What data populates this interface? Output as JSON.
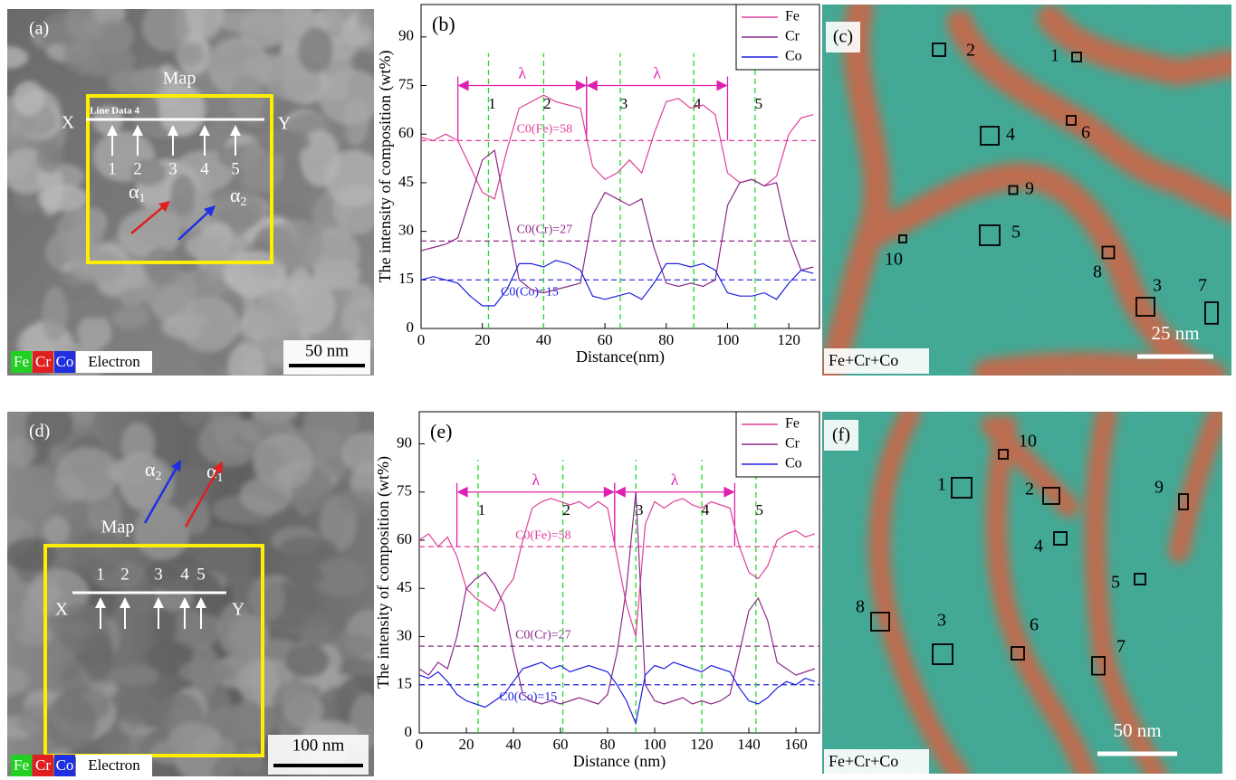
{
  "panels": {
    "a": {
      "label": "(a)",
      "map": "Map",
      "line": "Line Data 4",
      "x_end": "X",
      "y_end": "Y",
      "points": [
        "1",
        "2",
        "3",
        "4",
        "5"
      ],
      "alphas": [
        {
          "symbol": "α",
          "subscript": "1"
        },
        {
          "symbol": "α",
          "subscript": "2"
        }
      ],
      "legend": [
        {
          "label": "Fe",
          "color": "#22d022"
        },
        {
          "label": "Cr",
          "color": "#e02020"
        },
        {
          "label": "Co",
          "color": "#2030e0"
        },
        {
          "label": "Electron",
          "color": "#ffffff"
        }
      ],
      "scale": "50 nm"
    },
    "c": {
      "label": "(c)",
      "regions": [
        "1",
        "2",
        "4",
        "6",
        "9",
        "10",
        "5",
        "8",
        "3",
        "7"
      ],
      "scale": "25 nm",
      "caption": "Fe+Cr+Co"
    },
    "d": {
      "label": "(d)",
      "map": "Map",
      "x_end": "X",
      "y_end": "Y",
      "points": [
        "1",
        "2",
        "3",
        "4",
        "5"
      ],
      "alphas": [
        {
          "symbol": "α",
          "subscript": "2"
        },
        {
          "symbol": "α",
          "subscript": "1"
        }
      ],
      "legend": [
        {
          "label": "Fe",
          "color": "#22d022"
        },
        {
          "label": "Cr",
          "color": "#e02020"
        },
        {
          "label": "Co",
          "color": "#2030e0"
        },
        {
          "label": "Electron",
          "color": "#ffffff"
        }
      ],
      "scale": "100 nm"
    },
    "f": {
      "label": "(f)",
      "regions": [
        "1",
        "2",
        "10",
        "9",
        "4",
        "5",
        "8",
        "3",
        "6",
        "7"
      ],
      "scale": "50 nm",
      "caption": "Fe+Cr+Co"
    }
  },
  "chart_data": [
    {
      "type": "line",
      "panel_label": "(b)",
      "ylabel": "The intensity of composition (wt%)",
      "xlabel": "Distance(nm)",
      "xlim": [
        0,
        130
      ],
      "xticks": [
        0,
        20,
        40,
        60,
        80,
        100,
        120
      ],
      "ylim": [
        0,
        100
      ],
      "yticks": [
        0,
        15,
        30,
        45,
        60,
        75,
        90
      ],
      "legend": "upper right",
      "x": [
        0,
        4,
        8,
        12,
        16,
        20,
        24,
        28,
        32,
        36,
        40,
        44,
        48,
        52,
        56,
        60,
        64,
        68,
        72,
        76,
        80,
        84,
        88,
        92,
        96,
        100,
        104,
        108,
        112,
        116,
        120,
        124,
        128
      ],
      "series": [
        {
          "name": "Fe",
          "color": "#e0409a",
          "values": [
            59,
            58,
            60,
            58,
            50,
            42,
            40,
            55,
            68,
            70,
            72,
            70,
            69,
            68,
            50,
            46,
            48,
            52,
            48,
            60,
            70,
            71,
            68,
            69,
            66,
            48,
            45,
            46,
            44,
            47,
            60,
            65,
            66
          ]
        },
        {
          "name": "Cr",
          "color": "#8b2a8b",
          "values": [
            24,
            25,
            26,
            28,
            40,
            52,
            55,
            35,
            15,
            12,
            11,
            12,
            13,
            14,
            35,
            42,
            40,
            38,
            40,
            25,
            14,
            13,
            14,
            13,
            15,
            38,
            45,
            46,
            44,
            45,
            28,
            18,
            19
          ]
        },
        {
          "name": "Co",
          "color": "#2020e0",
          "values": [
            15,
            16,
            15,
            14,
            10,
            7,
            7,
            12,
            20,
            20,
            19,
            21,
            20,
            18,
            10,
            9,
            10,
            11,
            9,
            14,
            20,
            20,
            19,
            20,
            18,
            11,
            10,
            10,
            11,
            9,
            14,
            18,
            17
          ]
        }
      ],
      "reference_lines": [
        {
          "value": 58,
          "label": "C0(Fe)=58",
          "color": "#e0409a"
        },
        {
          "value": 27,
          "label": "C0(Cr)=27",
          "color": "#8b2a8b"
        },
        {
          "value": 15,
          "label": "C0(Co)=15",
          "color": "#2020e0"
        }
      ],
      "markers": [
        {
          "x": 22,
          "label": "1"
        },
        {
          "x": 40,
          "label": "2"
        },
        {
          "x": 65,
          "label": "3"
        },
        {
          "x": 89,
          "label": "4"
        },
        {
          "x": 109,
          "label": "5"
        }
      ],
      "spans": [
        {
          "x0": 12,
          "x1": 54,
          "label": "λ"
        },
        {
          "x0": 54,
          "x1": 100,
          "label": "λ"
        }
      ]
    },
    {
      "type": "line",
      "panel_label": "(e)",
      "ylabel": "The intensity of composition (wt%)",
      "xlabel": "Distance (nm)",
      "xlim": [
        0,
        170
      ],
      "xticks": [
        0,
        20,
        40,
        60,
        80,
        100,
        120,
        140,
        160
      ],
      "ylim": [
        0,
        100
      ],
      "yticks": [
        0,
        15,
        30,
        45,
        60,
        75,
        90
      ],
      "legend": "upper right",
      "x": [
        0,
        4,
        8,
        12,
        16,
        20,
        24,
        28,
        32,
        36,
        40,
        44,
        48,
        52,
        56,
        60,
        64,
        68,
        72,
        76,
        80,
        84,
        88,
        92,
        96,
        100,
        104,
        108,
        112,
        116,
        120,
        124,
        128,
        132,
        136,
        140,
        144,
        148,
        152,
        156,
        160,
        164,
        168
      ],
      "series": [
        {
          "name": "Fe",
          "color": "#e0409a",
          "values": [
            60,
            62,
            58,
            61,
            55,
            45,
            42,
            40,
            38,
            44,
            48,
            60,
            70,
            72,
            73,
            72,
            71,
            72,
            70,
            72,
            70,
            55,
            40,
            30,
            65,
            72,
            70,
            72,
            73,
            71,
            70,
            72,
            71,
            70,
            58,
            50,
            48,
            52,
            60,
            62,
            63,
            61,
            62
          ]
        },
        {
          "name": "Cr",
          "color": "#8b2a8b",
          "values": [
            20,
            18,
            22,
            20,
            30,
            45,
            48,
            50,
            46,
            40,
            25,
            12,
            10,
            9,
            10,
            9,
            10,
            11,
            10,
            9,
            12,
            25,
            45,
            75,
            15,
            10,
            9,
            10,
            11,
            9,
            10,
            9,
            10,
            12,
            25,
            38,
            42,
            35,
            22,
            20,
            18,
            19,
            20
          ]
        },
        {
          "name": "Co",
          "color": "#2020e0",
          "values": [
            18,
            17,
            19,
            16,
            12,
            10,
            9,
            8,
            10,
            12,
            16,
            20,
            21,
            22,
            20,
            21,
            19,
            20,
            21,
            20,
            19,
            15,
            10,
            3,
            18,
            21,
            20,
            22,
            21,
            20,
            19,
            21,
            20,
            19,
            14,
            10,
            9,
            11,
            14,
            16,
            15,
            17,
            16
          ]
        }
      ],
      "reference_lines": [
        {
          "value": 58,
          "label": "C0(Fe)=58",
          "color": "#e0409a"
        },
        {
          "value": 27,
          "label": "C0(Cr)=27",
          "color": "#8b2a8b"
        },
        {
          "value": 15,
          "label": "C0(Co)=15",
          "color": "#2020e0"
        }
      ],
      "markers": [
        {
          "x": 25,
          "label": "1"
        },
        {
          "x": 61,
          "label": "2"
        },
        {
          "x": 92,
          "label": "3"
        },
        {
          "x": 120,
          "label": "4"
        },
        {
          "x": 143,
          "label": "5"
        }
      ],
      "spans": [
        {
          "x0": 16,
          "x1": 83,
          "label": "λ"
        },
        {
          "x0": 83,
          "x1": 134,
          "label": "λ"
        }
      ]
    }
  ]
}
